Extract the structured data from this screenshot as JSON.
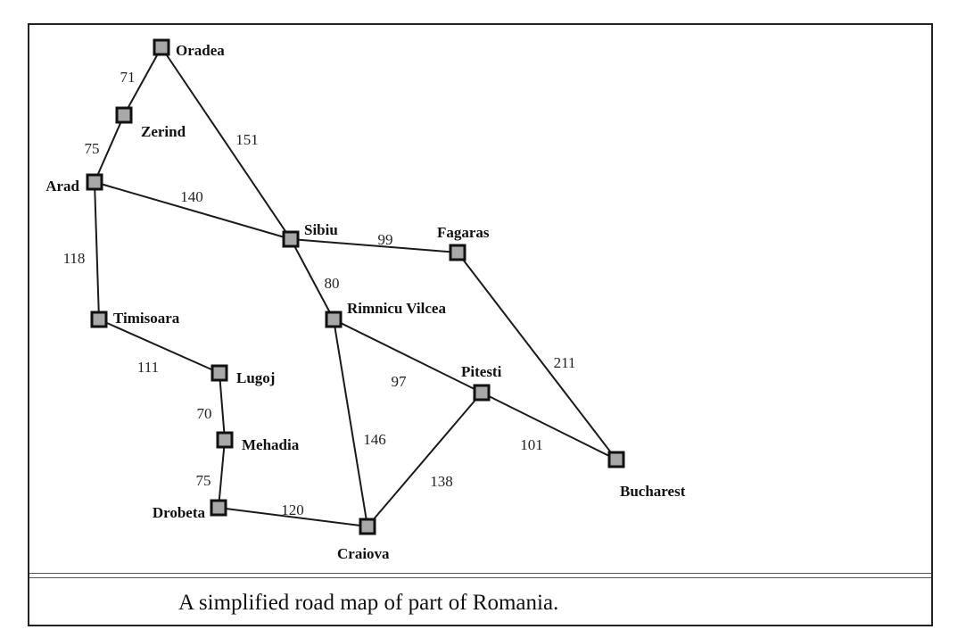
{
  "caption": "A simplified road map of part of Romania.",
  "cities": [
    {
      "id": "oradea",
      "name": "Oradea"
    },
    {
      "id": "zerind",
      "name": "Zerind"
    },
    {
      "id": "arad",
      "name": "Arad"
    },
    {
      "id": "sibiu",
      "name": "Sibiu"
    },
    {
      "id": "fagaras",
      "name": "Fagaras"
    },
    {
      "id": "timisoara",
      "name": "Timisoara"
    },
    {
      "id": "rimnicu",
      "name": "Rimnicu Vilcea"
    },
    {
      "id": "lugoj",
      "name": "Lugoj"
    },
    {
      "id": "pitesti",
      "name": "Pitesti"
    },
    {
      "id": "mehadia",
      "name": "Mehadia"
    },
    {
      "id": "bucharest",
      "name": "Bucharest"
    },
    {
      "id": "drobeta",
      "name": "Drobeta"
    },
    {
      "id": "craiova",
      "name": "Craiova"
    }
  ],
  "roads": [
    {
      "from": "oradea",
      "to": "zerind",
      "distance": "71"
    },
    {
      "from": "zerind",
      "to": "arad",
      "distance": "75"
    },
    {
      "from": "oradea",
      "to": "sibiu",
      "distance": "151"
    },
    {
      "from": "arad",
      "to": "sibiu",
      "distance": "140"
    },
    {
      "from": "sibiu",
      "to": "fagaras",
      "distance": "99"
    },
    {
      "from": "arad",
      "to": "timisoara",
      "distance": "118"
    },
    {
      "from": "sibiu",
      "to": "rimnicu",
      "distance": "80"
    },
    {
      "from": "fagaras",
      "to": "bucharest",
      "distance": "211"
    },
    {
      "from": "timisoara",
      "to": "lugoj",
      "distance": "111"
    },
    {
      "from": "rimnicu",
      "to": "pitesti",
      "distance": "97"
    },
    {
      "from": "lugoj",
      "to": "mehadia",
      "distance": "70"
    },
    {
      "from": "rimnicu",
      "to": "craiova",
      "distance": "146"
    },
    {
      "from": "pitesti",
      "to": "bucharest",
      "distance": "101"
    },
    {
      "from": "mehadia",
      "to": "drobeta",
      "distance": "75"
    },
    {
      "from": "pitesti",
      "to": "craiova",
      "distance": "138"
    },
    {
      "from": "drobeta",
      "to": "craiova",
      "distance": "120"
    }
  ]
}
